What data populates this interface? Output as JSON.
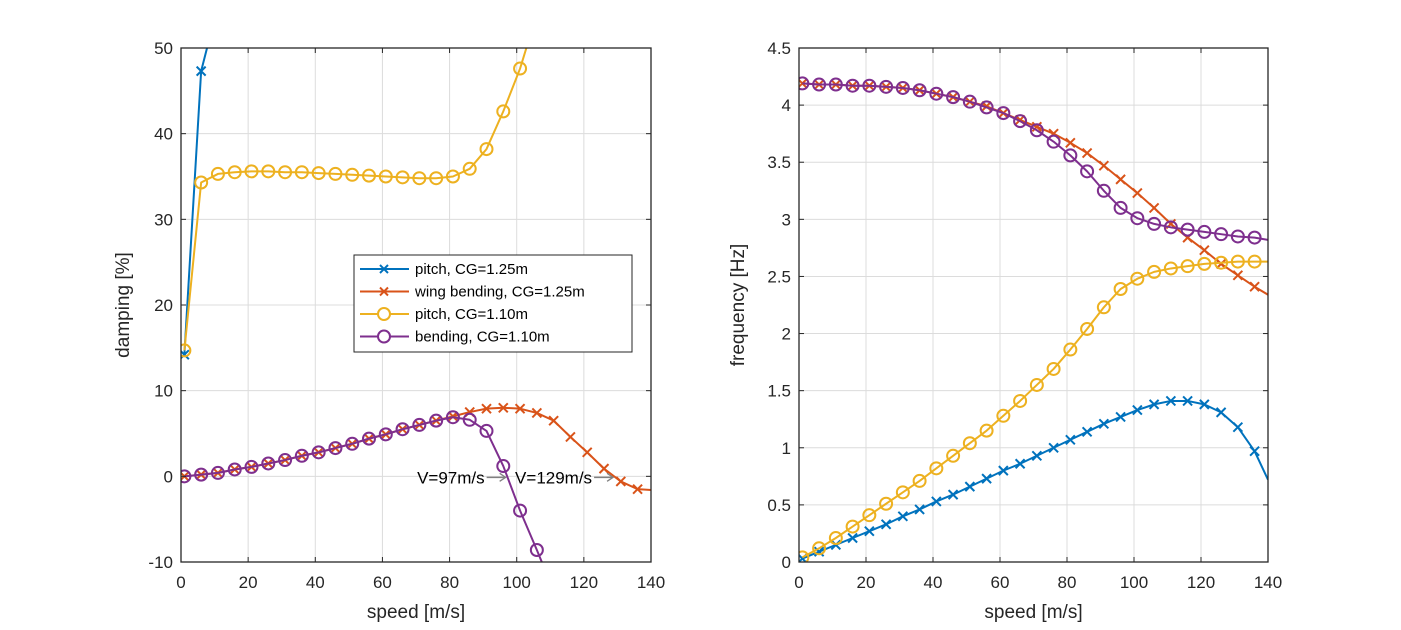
{
  "chart_data": [
    {
      "type": "line",
      "title": "",
      "xlabel": "speed [m/s]",
      "ylabel": "damping [%]",
      "xlim": [
        0,
        140
      ],
      "ylim": [
        -10,
        50
      ],
      "xticks": [
        0,
        20,
        40,
        60,
        80,
        100,
        120,
        140
      ],
      "yticks": [
        -10,
        0,
        10,
        20,
        30,
        40,
        50
      ],
      "grid": true,
      "legend_position": "center-right",
      "series": [
        {
          "name": "pitch, CG=1.25m",
          "color": "#0072BD",
          "marker": "x",
          "x": [
            1,
            6,
            11
          ],
          "y": [
            14.2,
            47.3,
            55
          ]
        },
        {
          "name": "wing bending, CG=1.25m",
          "color": "#D95319",
          "marker": "x",
          "x": [
            1,
            6,
            11,
            16,
            21,
            26,
            31,
            36,
            41,
            46,
            51,
            56,
            61,
            66,
            71,
            76,
            81,
            86,
            91,
            96,
            101,
            106,
            111,
            116,
            121,
            126,
            131,
            136,
            140
          ],
          "y": [
            0,
            0.2,
            0.4,
            0.8,
            1.1,
            1.5,
            1.9,
            2.4,
            2.8,
            3.3,
            3.8,
            4.4,
            4.9,
            5.5,
            6.0,
            6.5,
            7.0,
            7.5,
            7.9,
            8.0,
            7.9,
            7.4,
            6.5,
            4.6,
            2.8,
            0.9,
            -0.6,
            -1.5,
            -1.6
          ],
          "marker_count": 28
        },
        {
          "name": "pitch, CG=1.10m",
          "color": "#EDB120",
          "marker": "o",
          "x": [
            1,
            6,
            11,
            16,
            21,
            26,
            31,
            36,
            41,
            46,
            51,
            56,
            61,
            66,
            71,
            76,
            81,
            86,
            91,
            96,
            101,
            106
          ],
          "y": [
            14.7,
            34.3,
            35.3,
            35.5,
            35.6,
            35.6,
            35.5,
            35.5,
            35.4,
            35.3,
            35.2,
            35.1,
            35.0,
            34.9,
            34.8,
            34.8,
            35.0,
            35.9,
            38.2,
            42.6,
            47.6,
            54
          ]
        },
        {
          "name": "bending, CG=1.10m",
          "color": "#7E2F8E",
          "marker": "o",
          "x": [
            1,
            6,
            11,
            16,
            21,
            26,
            31,
            36,
            41,
            46,
            51,
            56,
            61,
            66,
            71,
            76,
            81,
            86,
            91,
            96,
            101,
            106,
            108
          ],
          "y": [
            0,
            0.2,
            0.4,
            0.8,
            1.1,
            1.5,
            1.9,
            2.4,
            2.8,
            3.3,
            3.8,
            4.4,
            4.9,
            5.5,
            6.0,
            6.5,
            6.9,
            6.6,
            5.3,
            1.2,
            -4.0,
            -8.6,
            -10.5
          ],
          "marker_count": 22
        }
      ],
      "annotations": [
        {
          "text": "V=97m/s",
          "arrow_to_x": 97,
          "y": 0
        },
        {
          "text": "V=129m/s",
          "arrow_to_x": 129,
          "y": 0
        }
      ]
    },
    {
      "type": "line",
      "title": "",
      "xlabel": "speed [m/s]",
      "ylabel": "frequency [Hz]",
      "xlim": [
        0,
        140
      ],
      "ylim": [
        0,
        4.5
      ],
      "xticks": [
        0,
        20,
        40,
        60,
        80,
        100,
        120,
        140
      ],
      "yticks": [
        0,
        0.5,
        1,
        1.5,
        2,
        2.5,
        3,
        3.5,
        4,
        4.5
      ],
      "grid": true,
      "series": [
        {
          "name": "pitch, CG=1.25m",
          "color": "#0072BD",
          "marker": "x",
          "x": [
            1,
            6,
            11,
            16,
            21,
            26,
            31,
            36,
            41,
            46,
            51,
            56,
            61,
            66,
            71,
            76,
            81,
            86,
            91,
            96,
            101,
            106,
            111,
            116,
            121,
            126,
            131,
            136,
            140
          ],
          "y": [
            0.03,
            0.09,
            0.15,
            0.21,
            0.27,
            0.33,
            0.4,
            0.46,
            0.53,
            0.59,
            0.66,
            0.73,
            0.8,
            0.86,
            0.93,
            1.0,
            1.07,
            1.14,
            1.21,
            1.27,
            1.33,
            1.38,
            1.41,
            1.41,
            1.38,
            1.31,
            1.18,
            0.97,
            0.72
          ],
          "marker_count": 28
        },
        {
          "name": "wing bending, CG=1.25m",
          "color": "#D95319",
          "marker": "x",
          "x": [
            1,
            6,
            11,
            16,
            21,
            26,
            31,
            36,
            41,
            46,
            51,
            56,
            61,
            66,
            71,
            76,
            81,
            86,
            91,
            96,
            101,
            106,
            111,
            116,
            121,
            126,
            131,
            136,
            140
          ],
          "y": [
            4.19,
            4.18,
            4.18,
            4.17,
            4.17,
            4.16,
            4.15,
            4.13,
            4.1,
            4.07,
            4.03,
            3.99,
            3.93,
            3.87,
            3.81,
            3.75,
            3.67,
            3.58,
            3.47,
            3.35,
            3.23,
            3.1,
            2.96,
            2.84,
            2.73,
            2.61,
            2.51,
            2.41,
            2.34
          ],
          "marker_count": 28
        },
        {
          "name": "pitch, CG=1.10m",
          "color": "#EDB120",
          "marker": "o",
          "x": [
            1,
            6,
            11,
            16,
            21,
            26,
            31,
            36,
            41,
            46,
            51,
            56,
            61,
            66,
            71,
            76,
            81,
            86,
            91,
            96,
            101,
            106,
            111,
            116,
            121,
            126,
            131,
            136,
            140
          ],
          "y": [
            0.04,
            0.12,
            0.21,
            0.31,
            0.41,
            0.51,
            0.61,
            0.71,
            0.82,
            0.93,
            1.04,
            1.15,
            1.28,
            1.41,
            1.55,
            1.69,
            1.86,
            2.04,
            2.23,
            2.39,
            2.48,
            2.54,
            2.57,
            2.59,
            2.61,
            2.62,
            2.63,
            2.63,
            2.63
          ],
          "marker_count": 28
        },
        {
          "name": "bending, CG=1.10m",
          "color": "#7E2F8E",
          "marker": "o",
          "x": [
            1,
            6,
            11,
            16,
            21,
            26,
            31,
            36,
            41,
            46,
            51,
            56,
            61,
            66,
            71,
            76,
            81,
            86,
            91,
            96,
            101,
            106,
            111,
            116,
            121,
            126,
            131,
            136,
            140
          ],
          "y": [
            4.19,
            4.18,
            4.18,
            4.17,
            4.17,
            4.16,
            4.15,
            4.13,
            4.1,
            4.07,
            4.03,
            3.98,
            3.93,
            3.86,
            3.78,
            3.68,
            3.56,
            3.42,
            3.25,
            3.1,
            3.01,
            2.96,
            2.93,
            2.91,
            2.89,
            2.87,
            2.85,
            2.84,
            2.82
          ],
          "marker_count": 28
        }
      ]
    }
  ]
}
